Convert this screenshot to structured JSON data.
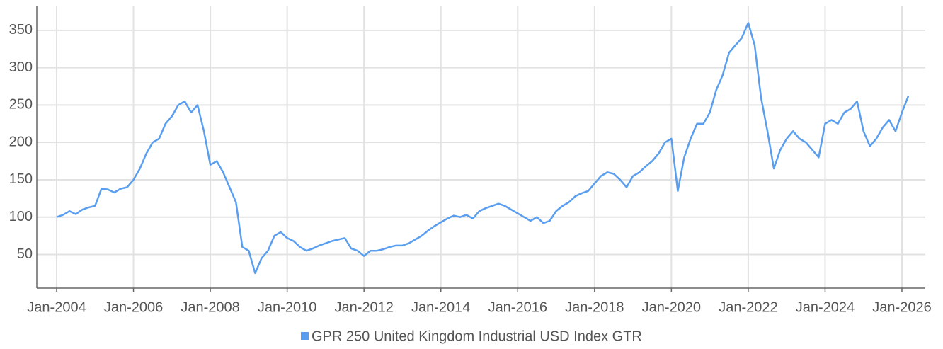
{
  "chart_data": {
    "type": "line",
    "x": [
      "Jan-2004",
      "Mar-2004",
      "May-2004",
      "Jul-2004",
      "Sep-2004",
      "Nov-2004",
      "Jan-2005",
      "Mar-2005",
      "May-2005",
      "Jul-2005",
      "Sep-2005",
      "Nov-2005",
      "Jan-2006",
      "Mar-2006",
      "May-2006",
      "Jul-2006",
      "Sep-2006",
      "Nov-2006",
      "Jan-2007",
      "Mar-2007",
      "May-2007",
      "Jul-2007",
      "Sep-2007",
      "Nov-2007",
      "Jan-2008",
      "Mar-2008",
      "May-2008",
      "Jul-2008",
      "Sep-2008",
      "Nov-2008",
      "Jan-2009",
      "Mar-2009",
      "May-2009",
      "Jul-2009",
      "Sep-2009",
      "Nov-2009",
      "Jan-2010",
      "Mar-2010",
      "May-2010",
      "Jul-2010",
      "Sep-2010",
      "Nov-2010",
      "Jan-2011",
      "Mar-2011",
      "May-2011",
      "Jul-2011",
      "Sep-2011",
      "Nov-2011",
      "Jan-2012",
      "Mar-2012",
      "May-2012",
      "Jul-2012",
      "Sep-2012",
      "Nov-2012",
      "Jan-2013",
      "Mar-2013",
      "May-2013",
      "Jul-2013",
      "Sep-2013",
      "Nov-2013",
      "Jan-2014",
      "Mar-2014",
      "May-2014",
      "Jul-2014",
      "Sep-2014",
      "Nov-2014",
      "Jan-2015",
      "Mar-2015",
      "May-2015",
      "Jul-2015",
      "Sep-2015",
      "Nov-2015",
      "Jan-2016",
      "Mar-2016",
      "May-2016",
      "Jul-2016",
      "Sep-2016",
      "Nov-2016",
      "Jan-2017",
      "Mar-2017",
      "May-2017",
      "Jul-2017",
      "Sep-2017",
      "Nov-2017",
      "Jan-2018",
      "Mar-2018",
      "May-2018",
      "Jul-2018",
      "Sep-2018",
      "Nov-2018",
      "Jan-2019",
      "Mar-2019",
      "May-2019",
      "Jul-2019",
      "Sep-2019",
      "Nov-2019",
      "Jan-2020",
      "Mar-2020",
      "May-2020",
      "Jul-2020",
      "Sep-2020",
      "Nov-2020",
      "Jan-2021",
      "Mar-2021",
      "May-2021",
      "Jul-2021",
      "Sep-2021",
      "Nov-2021",
      "Jan-2022",
      "Mar-2022",
      "May-2022",
      "Jul-2022",
      "Sep-2022",
      "Nov-2022",
      "Jan-2023",
      "Mar-2023",
      "May-2023",
      "Jul-2023",
      "Sep-2023",
      "Nov-2023",
      "Jan-2024",
      "Mar-2024",
      "May-2024",
      "Jul-2024",
      "Sep-2024",
      "Nov-2024",
      "Jan-2025",
      "Mar-2025",
      "May-2025",
      "Jul-2025",
      "Sep-2025",
      "Nov-2025",
      "Jan-2026",
      "Mar-2026"
    ],
    "series": [
      {
        "name": "GPR 250 United Kingdom Industrial USD Index GTR",
        "color": "#5a9ef0",
        "values": [
          100,
          103,
          108,
          104,
          110,
          113,
          115,
          138,
          137,
          133,
          138,
          140,
          150,
          165,
          185,
          200,
          205,
          225,
          235,
          250,
          255,
          240,
          250,
          215,
          170,
          175,
          160,
          140,
          120,
          60,
          55,
          25,
          45,
          55,
          75,
          80,
          72,
          68,
          60,
          55,
          58,
          62,
          65,
          68,
          70,
          72,
          58,
          55,
          48,
          55,
          55,
          57,
          60,
          62,
          62,
          65,
          70,
          75,
          82,
          88,
          93,
          98,
          102,
          100,
          103,
          98,
          108,
          112,
          115,
          118,
          115,
          110,
          105,
          100,
          95,
          100,
          92,
          95,
          108,
          115,
          120,
          128,
          132,
          135,
          145,
          155,
          160,
          158,
          150,
          140,
          155,
          160,
          168,
          175,
          185,
          200,
          205,
          135,
          180,
          205,
          225,
          225,
          240,
          270,
          290,
          320,
          330,
          340,
          360,
          330,
          260,
          215,
          165,
          190,
          205,
          215,
          205,
          200,
          190,
          180,
          225,
          230,
          225,
          240,
          245,
          255,
          215,
          195,
          205,
          220,
          230,
          215,
          240,
          262
        ]
      }
    ],
    "xticks": [
      "Jan-2004",
      "Jan-2006",
      "Jan-2008",
      "Jan-2010",
      "Jan-2012",
      "Jan-2014",
      "Jan-2016",
      "Jan-2018",
      "Jan-2020",
      "Jan-2022",
      "Jan-2024",
      "Jan-2026"
    ],
    "ylim": [
      5,
      383
    ],
    "yticks": [
      50,
      100,
      150,
      200,
      250,
      300,
      350
    ],
    "grid": true
  }
}
